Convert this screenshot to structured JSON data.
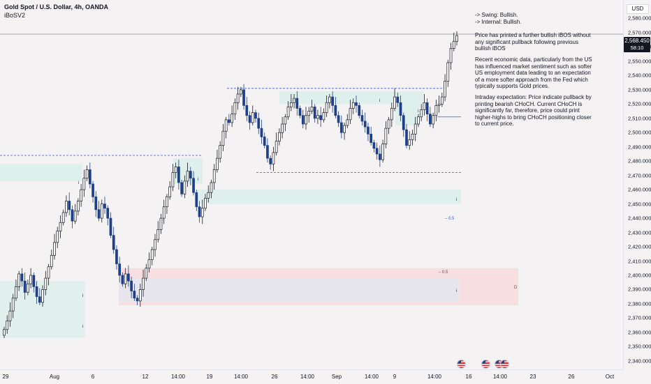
{
  "header": {
    "symbol": "Gold Spot / U.S. Dollar, 4h, OANDA",
    "indicator": "iBoSV2"
  },
  "currency": "USD",
  "last_price": "2,568.450",
  "countdown": "58:10",
  "price_axis": {
    "labels": [
      "2,580.000",
      "2,570.000",
      "2,560.000",
      "2,550.000",
      "2,540.000",
      "2,530.000",
      "2,520.000",
      "2,510.000",
      "2,500.000",
      "2,490.000",
      "2,480.000",
      "2,470.000",
      "2,460.000",
      "2,450.000",
      "2,440.000",
      "2,430.000",
      "2,420.000",
      "2,410.000",
      "2,400.000",
      "2,390.000",
      "2,380.000",
      "2,370.000",
      "2,360.000",
      "2,350.000",
      "2,340.000"
    ],
    "range": [
      2337,
      2590
    ]
  },
  "time_axis": {
    "labels": [
      "29",
      "Aug",
      "6",
      "12",
      "14:00",
      "19",
      "14:00",
      "26",
      "14:00",
      "Sep",
      "14:00",
      "9",
      "14:00",
      "16",
      "14:00",
      "23",
      "26",
      "Oct"
    ]
  },
  "note": {
    "swing": "-> Swing:  Bullish.",
    "internal": "-> Internal:  Bullish.",
    "p1": "Price has printed a further bullish iBOS without any significant pullback following previous bullish iBOS",
    "p2": "Recent economic data, particularly from the US has influenced market sentiment such as softer US employment data leading to an expectation of a more softer approach from the Fed which typically supports Gold prices.",
    "p3": "Intraday expectation: Price indicate pullback by printing bearish CHoCH.  Current CHoCH is significantly far, therefore, price could print higher-highs to bring CHoCH positioning closer to current price."
  },
  "chart_labels": {
    "half_upper": "0.5",
    "half_lower": "0.5",
    "d_label": "D",
    "i_mark": "i"
  },
  "chart_data": {
    "type": "candlestick",
    "instrument": "XAUUSD",
    "timeframe": "4h",
    "up_color": "#131722",
    "down_color": "#1e3f8a",
    "y_range": [
      2337,
      2590
    ],
    "closes": [
      2362,
      2368,
      2375,
      2384,
      2392,
      2401,
      2396,
      2388,
      2394,
      2400,
      2392,
      2385,
      2381,
      2390,
      2398,
      2406,
      2414,
      2423,
      2431,
      2437,
      2444,
      2452,
      2446,
      2438,
      2445,
      2452,
      2460,
      2468,
      2474,
      2464,
      2455,
      2446,
      2440,
      2450,
      2447,
      2440,
      2428,
      2418,
      2408,
      2400,
      2394,
      2401,
      2396,
      2389,
      2384,
      2382,
      2390,
      2398,
      2405,
      2411,
      2418,
      2425,
      2432,
      2440,
      2448,
      2455,
      2462,
      2472,
      2476,
      2465,
      2457,
      2466,
      2473,
      2468,
      2458,
      2448,
      2441,
      2447,
      2454,
      2458,
      2465,
      2474,
      2482,
      2491,
      2501,
      2509,
      2507,
      2513,
      2521,
      2527,
      2530,
      2519,
      2512,
      2507,
      2514,
      2510,
      2503,
      2497,
      2491,
      2482,
      2478,
      2486,
      2494,
      2500,
      2506,
      2511,
      2518,
      2521,
      2524,
      2517,
      2512,
      2506,
      2512,
      2515,
      2518,
      2510,
      2512,
      2509,
      2514,
      2521,
      2525,
      2519,
      2512,
      2507,
      2500,
      2505,
      2509,
      2517,
      2521,
      2519,
      2512,
      2508,
      2504,
      2499,
      2493,
      2489,
      2485,
      2481,
      2492,
      2503,
      2509,
      2517,
      2525,
      2521,
      2512,
      2502,
      2491,
      2495,
      2499,
      2506,
      2511,
      2516,
      2521,
      2513,
      2506,
      2512,
      2519,
      2520,
      2525,
      2536,
      2549,
      2559,
      2564,
      2568
    ]
  },
  "colors": {
    "background": "#f4f2f3",
    "candle_up": "#131722",
    "candle_down": "#1e3f8a",
    "demand_zone": "#dff0ec",
    "supply_zone": "#f7dfe1",
    "choch_zone": "#e7e6ec",
    "structure_line": "#3a5bd6"
  }
}
